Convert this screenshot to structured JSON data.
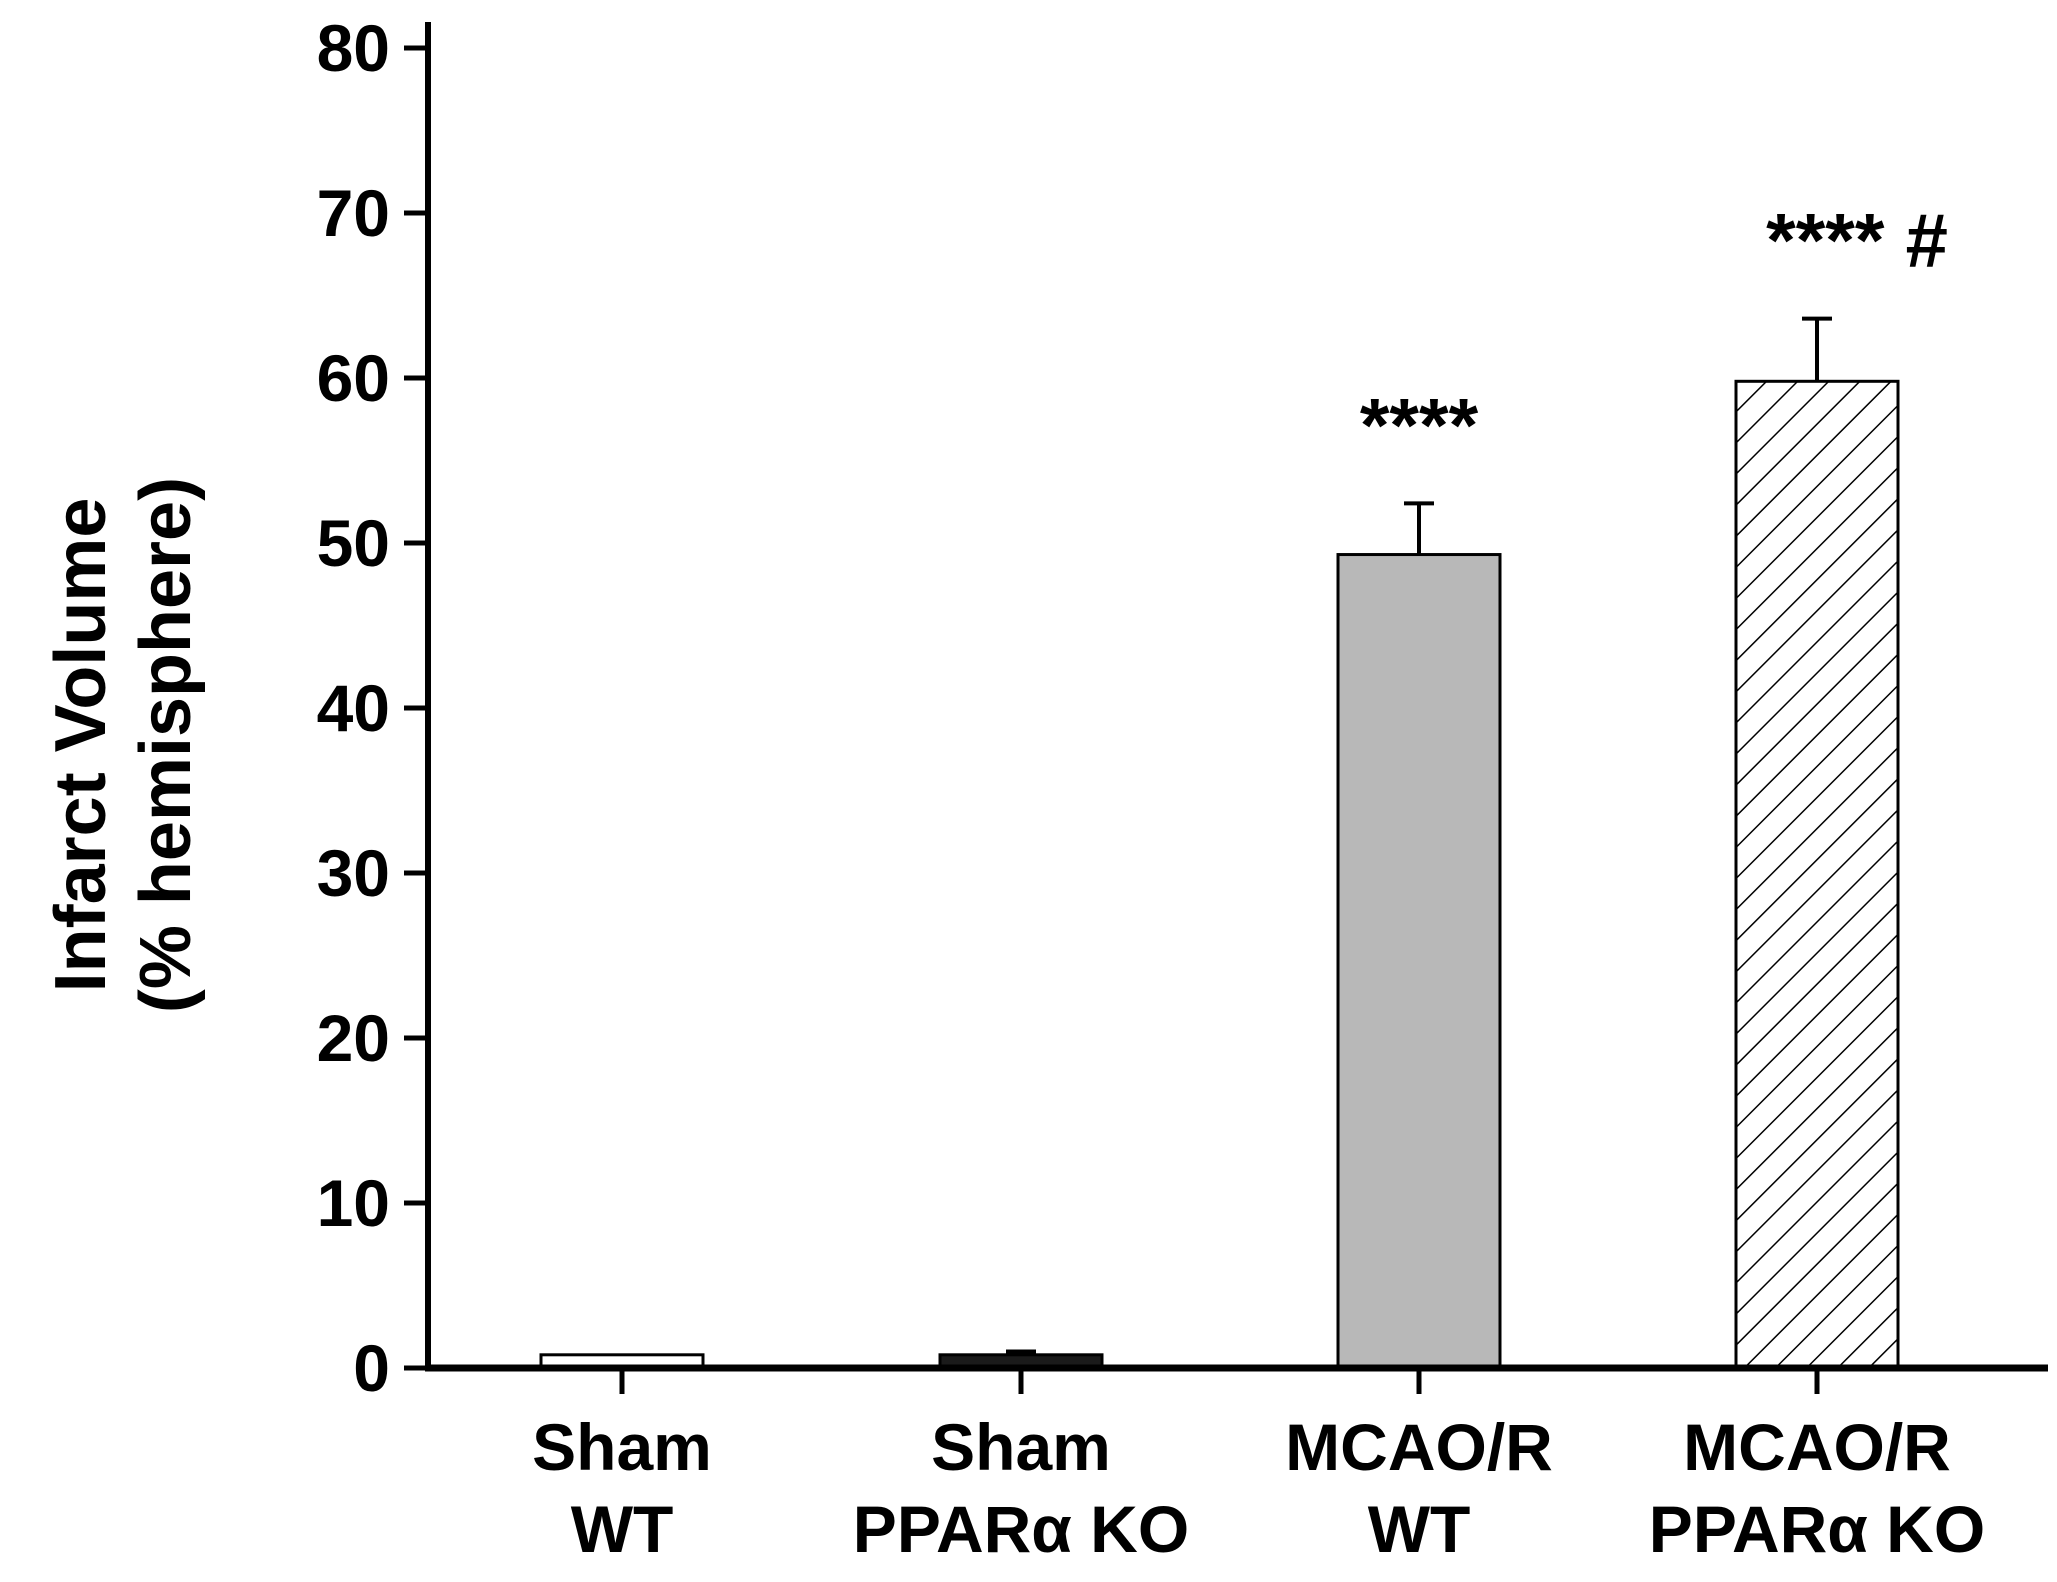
{
  "chart_data": {
    "type": "bar",
    "title": "",
    "xlabel": "",
    "ylabel": [
      "Infarct Volume",
      "(% hemisphere)"
    ],
    "ylim": [
      0,
      80
    ],
    "yticks": [
      0,
      10,
      20,
      30,
      40,
      50,
      60,
      70,
      80
    ],
    "grid": false,
    "categories": [
      [
        "Sham",
        "WT"
      ],
      [
        "Sham",
        "PPARα KO"
      ],
      [
        "MCAO/R",
        "WT"
      ],
      [
        "MCAO/R",
        "PPARα KO"
      ]
    ],
    "values": [
      0.8,
      0.8,
      49.3,
      59.8
    ],
    "errors": [
      0,
      0.2,
      3.1,
      3.8
    ],
    "fills": [
      "#ffffff",
      "#1a1a1a",
      "#b8b8b8",
      "hatch"
    ],
    "annotations": [
      {
        "bar": 2,
        "text": "****"
      },
      {
        "bar": 3,
        "text": "****   #"
      }
    ]
  }
}
